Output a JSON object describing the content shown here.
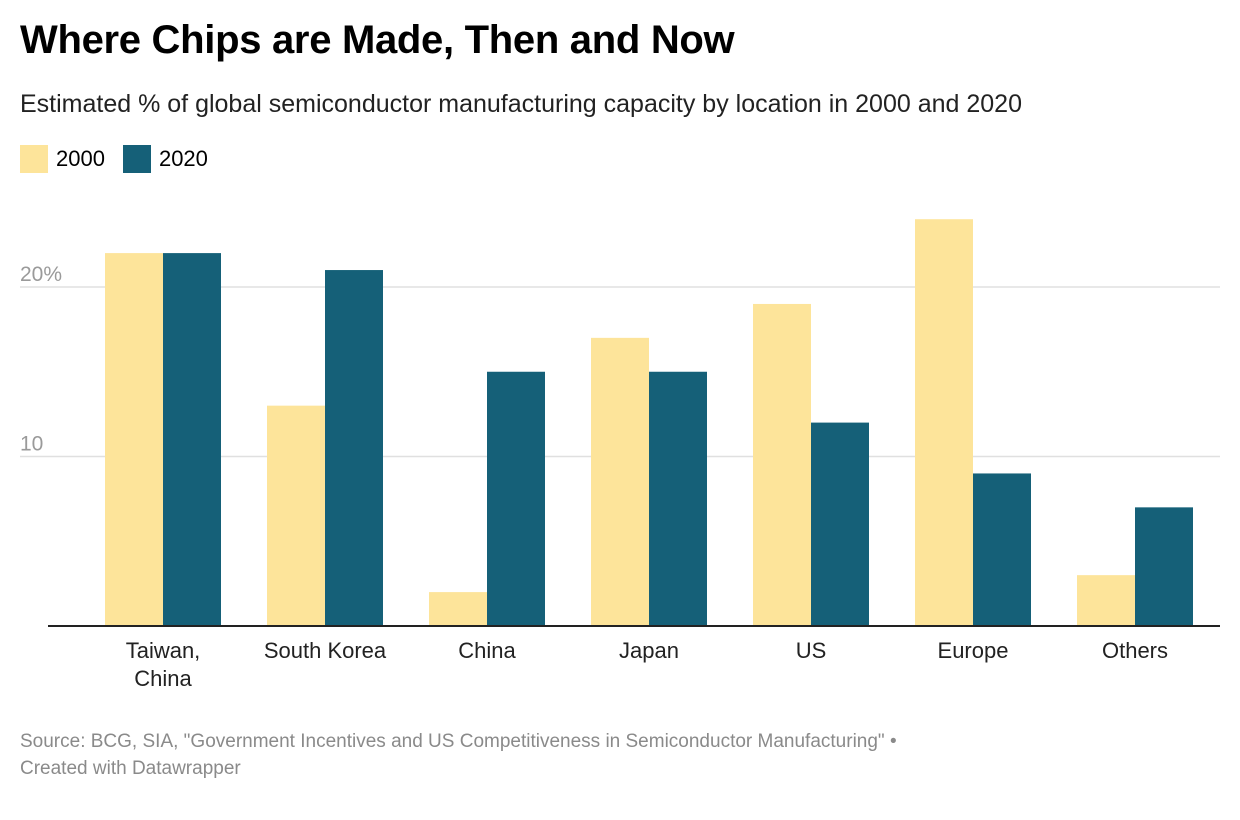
{
  "header": {
    "title": "Where Chips are Made, Then and Now",
    "subtitle": "Estimated % of global semiconductor manufacturing capacity by location in 2000 and 2020"
  },
  "legend": [
    {
      "label": "2000",
      "color": "#fde49a"
    },
    {
      "label": "2020",
      "color": "#156078"
    }
  ],
  "chart_data": {
    "type": "bar",
    "categories": [
      "Taiwan, China",
      "South Korea",
      "China",
      "Japan",
      "US",
      "Europe",
      "Others"
    ],
    "category_lines": [
      [
        "Taiwan,",
        "China"
      ],
      [
        "South Korea"
      ],
      [
        "China"
      ],
      [
        "Japan"
      ],
      [
        "US"
      ],
      [
        "Europe"
      ],
      [
        "Others"
      ]
    ],
    "series": [
      {
        "name": "2000",
        "color": "#fde49a",
        "values": [
          22,
          13,
          2,
          17,
          19,
          24,
          3
        ]
      },
      {
        "name": "2020",
        "color": "#156078",
        "values": [
          22,
          21,
          15,
          15,
          12,
          9,
          7
        ]
      }
    ],
    "yticks": [
      {
        "value": 10,
        "label": "10"
      },
      {
        "value": 20,
        "label": "20%"
      }
    ],
    "ylim": [
      0,
      25
    ],
    "grid": true,
    "legend_position": "top-left"
  },
  "footer": {
    "line1": "Source: BCG, SIA, \"Government Incentives and US Competitiveness in Semiconductor Manufacturing\" •",
    "line2": "Created with Datawrapper"
  }
}
